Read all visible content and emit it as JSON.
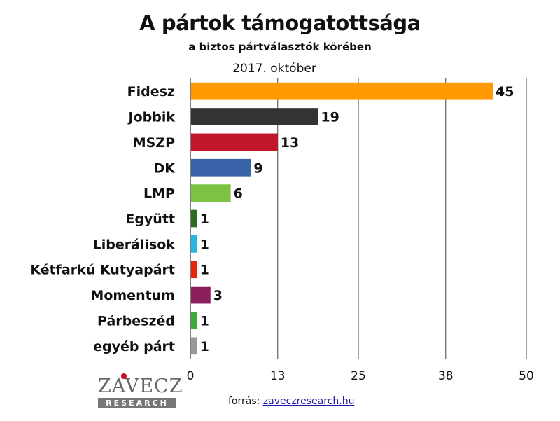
{
  "header": {
    "title": "A pártok támogatottsága",
    "subtitle": "a biztos pártválasztók körében",
    "date": "2017. október"
  },
  "chart_data": {
    "type": "bar",
    "orientation": "horizontal",
    "title": "A pártok támogatottsága",
    "subtitle": "a biztos pártválasztók körében",
    "period": "2017. október",
    "categories": [
      "Fidesz",
      "Jobbik",
      "MSZP",
      "DK",
      "LMP",
      "Együtt",
      "Liberálisok",
      "Kétfarkú Kutyapárt",
      "Momentum",
      "Párbeszéd",
      "egyéb párt"
    ],
    "values": [
      45,
      19,
      13,
      9,
      6,
      1,
      1,
      1,
      3,
      1,
      1
    ],
    "colors": [
      "#ff9900",
      "#333333",
      "#c0182a",
      "#3a62a8",
      "#7dc242",
      "#2f6b22",
      "#29b6e0",
      "#e8240c",
      "#8b1f5c",
      "#3faa35",
      "#999999"
    ],
    "xlim": [
      0,
      50
    ],
    "x_ticks": [
      0,
      13,
      25,
      38,
      50
    ],
    "grid": true,
    "legend": "none",
    "xlabel": "",
    "ylabel": ""
  },
  "branding": {
    "logo_name": "ZAVECZ",
    "logo_sub": "RESEARCH",
    "source_prefix": "forrás:",
    "source_link": "zaveczresearch.hu"
  }
}
